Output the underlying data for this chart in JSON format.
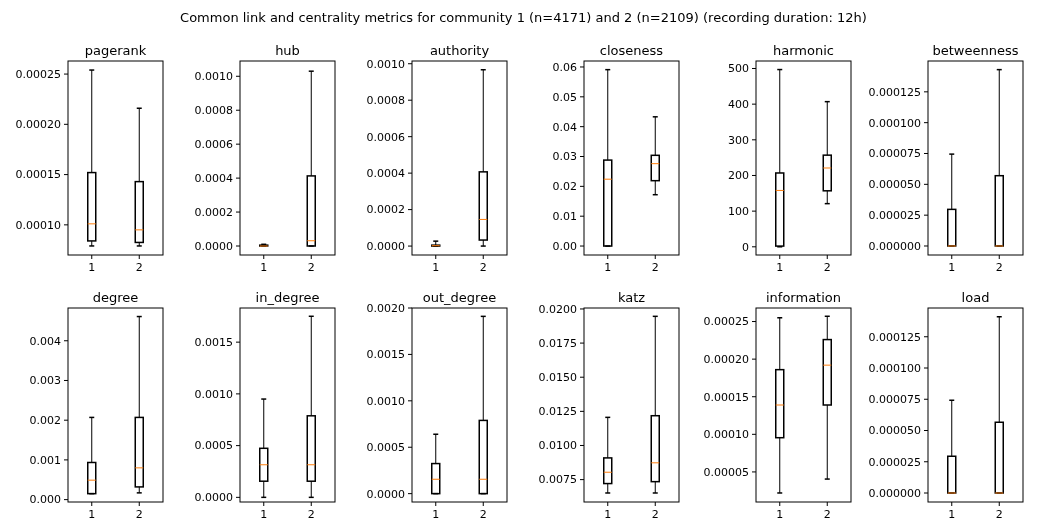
{
  "chart_data": [
    {
      "type": "box",
      "title": "pagerank",
      "annotations": [
        "Common link and centrality metrics for community 1 (n=4171) and 2 (n=2109) (recording duration: 12h)"
      ],
      "categories": [
        "1",
        "2"
      ],
      "ylim": [
        7e-05,
        0.000263
      ],
      "yticks": [
        {
          "value": 0.0001,
          "label": "0.00010"
        },
        {
          "value": 0.00015,
          "label": "0.00015"
        },
        {
          "value": 0.0002,
          "label": "0.00020"
        },
        {
          "value": 0.00025,
          "label": "0.00025"
        }
      ],
      "boxes": [
        {
          "low": 7.9e-05,
          "q1": 8.4e-05,
          "median": 0.000101,
          "q3": 0.000152,
          "high": 0.000254
        },
        {
          "low": 7.9e-05,
          "q1": 8.25e-05,
          "median": 9.5e-05,
          "q3": 0.000143,
          "high": 0.000216
        }
      ]
    },
    {
      "type": "box",
      "title": "hub",
      "categories": [
        "1",
        "2"
      ],
      "ylim": [
        -5.3e-05,
        0.00109
      ],
      "yticks": [
        {
          "value": 0,
          "label": "0.0000"
        },
        {
          "value": 0.0002,
          "label": "0.0002"
        },
        {
          "value": 0.0004,
          "label": "0.0004"
        },
        {
          "value": 0.0006,
          "label": "0.0006"
        },
        {
          "value": 0.0008,
          "label": "0.0008"
        },
        {
          "value": 0.001,
          "label": "0.0010"
        }
      ],
      "boxes": [
        {
          "low": 0,
          "q1": 0,
          "median": 0,
          "q3": 5e-06,
          "high": 1e-05
        },
        {
          "low": 0,
          "q1": 0,
          "median": 3.1e-05,
          "q3": 0.000413,
          "high": 0.00103
        }
      ]
    },
    {
      "type": "box",
      "title": "authority",
      "categories": [
        "1",
        "2"
      ],
      "ylim": [
        -4.9e-05,
        0.001015
      ],
      "yticks": [
        {
          "value": 0,
          "label": "0.0000"
        },
        {
          "value": 0.0002,
          "label": "0.0002"
        },
        {
          "value": 0.0004,
          "label": "0.0004"
        },
        {
          "value": 0.0006,
          "label": "0.0006"
        },
        {
          "value": 0.0008,
          "label": "0.0008"
        },
        {
          "value": 0.001,
          "label": "0.0010"
        }
      ],
      "boxes": [
        {
          "low": 0,
          "q1": 0,
          "median": 2e-06,
          "q3": 5e-06,
          "high": 2.7e-05
        },
        {
          "low": 0,
          "q1": 3.3e-05,
          "median": 0.000146,
          "q3": 0.000407,
          "high": 0.000967
        }
      ]
    },
    {
      "type": "box",
      "title": "closeness",
      "categories": [
        "1",
        "2"
      ],
      "ylim": [
        -0.003,
        0.062
      ],
      "yticks": [
        {
          "value": 0,
          "label": "0.00"
        },
        0.01,
        0.02,
        0.03,
        0.04,
        0.05,
        0.06
      ],
      "boxes": [
        {
          "low": 0,
          "q1": 0,
          "median": 0.0224,
          "q3": 0.0288,
          "high": 0.0591
        },
        {
          "low": 0.0172,
          "q1": 0.0219,
          "median": 0.0276,
          "q3": 0.0304,
          "high": 0.0433
        }
      ]
    },
    {
      "type": "box",
      "title": "harmonic",
      "categories": [
        "1",
        "2"
      ],
      "ylim": [
        -23,
        521
      ],
      "yticks": [
        0,
        100,
        200,
        300,
        400,
        500
      ],
      "boxes": [
        {
          "low": 0,
          "q1": 2,
          "median": 158,
          "q3": 207,
          "high": 497
        },
        {
          "low": 121,
          "q1": 157,
          "median": 221,
          "q3": 257,
          "high": 407
        }
      ]
    },
    {
      "type": "box",
      "title": "betweenness",
      "categories": [
        "1",
        "2"
      ],
      "ylim": [
        -7.3e-06,
        0.00015
      ],
      "yticks": [
        {
          "value": 0,
          "label": "0.000000"
        },
        {
          "value": 2.5e-05,
          "label": "0.000025"
        },
        {
          "value": 5e-05,
          "label": "0.000050"
        },
        {
          "value": 7.5e-05,
          "label": "0.000075"
        },
        {
          "value": 0.0001,
          "label": "0.000100"
        },
        {
          "value": 0.000125,
          "label": "0.000125"
        }
      ],
      "boxes": [
        {
          "low": 0,
          "q1": 0,
          "median": 0,
          "q3": 2.97e-05,
          "high": 7.45e-05
        },
        {
          "low": 0,
          "q1": 0,
          "median": 0,
          "q3": 5.7e-05,
          "high": 0.000143
        }
      ]
    },
    {
      "type": "box",
      "title": "degree",
      "categories": [
        "1",
        "2"
      ],
      "ylim": [
        -6e-05,
        0.004825
      ],
      "yticks": [
        {
          "value": 0,
          "label": "0.000"
        },
        0.001,
        0.002,
        0.003,
        0.004
      ],
      "boxes": [
        {
          "low": 0.00015,
          "q1": 0.00015,
          "median": 0.00049,
          "q3": 0.000935,
          "high": 0.00207
        },
        {
          "low": 0.00017,
          "q1": 0.00032,
          "median": 0.0008,
          "q3": 0.00207,
          "high": 0.00461
        }
      ]
    },
    {
      "type": "box",
      "title": "in_degree",
      "categories": [
        "1",
        "2"
      ],
      "ylim": [
        -4.5e-05,
        0.00183
      ],
      "yticks": [
        {
          "value": 0,
          "label": "0.0000"
        },
        0.0005,
        {
          "value": 0.001,
          "label": "0.0010"
        },
        0.0015
      ],
      "boxes": [
        {
          "low": 0,
          "q1": 0.000156,
          "median": 0.000315,
          "q3": 0.000474,
          "high": 0.00095
        },
        {
          "low": 0,
          "q1": 0.000156,
          "median": 0.000315,
          "q3": 0.000788,
          "high": 0.00175
        }
      ]
    },
    {
      "type": "box",
      "title": "out_degree",
      "categories": [
        "1",
        "2"
      ],
      "ylim": [
        -9e-05,
        0.002
      ],
      "yticks": [
        {
          "value": 0,
          "label": "0.0000"
        },
        0.0005,
        {
          "value": 0.001,
          "label": "0.0010"
        },
        0.0015,
        {
          "value": 0.002,
          "label": "0.0020"
        }
      ],
      "boxes": [
        {
          "low": 0,
          "q1": 0,
          "median": 0.000155,
          "q3": 0.000324,
          "high": 0.00064
        },
        {
          "low": 0,
          "q1": 0,
          "median": 0.000155,
          "q3": 0.000789,
          "high": 0.00191
        }
      ]
    },
    {
      "type": "box",
      "title": "katz",
      "categories": [
        "1",
        "2"
      ],
      "ylim": [
        0.00586,
        0.02007
      ],
      "yticks": [
        0.0075,
        {
          "value": 0.01,
          "label": "0.0100"
        },
        0.0125,
        {
          "value": 0.015,
          "label": "0.0150"
        },
        0.0175,
        {
          "value": 0.02,
          "label": "0.0200"
        }
      ],
      "boxes": [
        {
          "low": 0.00652,
          "q1": 0.00721,
          "median": 0.00804,
          "q3": 0.00909,
          "high": 0.01206
        },
        {
          "low": 0.00652,
          "q1": 0.00735,
          "median": 0.00873,
          "q3": 0.01218,
          "high": 0.01946
        }
      ]
    },
    {
      "type": "box",
      "title": "information",
      "categories": [
        "1",
        "2"
      ],
      "ylim": [
        1e-05,
        0.000268
      ],
      "yticks": [
        {
          "value": 5e-05,
          "label": "0.00005"
        },
        {
          "value": 0.0001,
          "label": "0.00010"
        },
        0.00015,
        {
          "value": 0.0002,
          "label": "0.00020"
        },
        0.00025
      ],
      "boxes": [
        {
          "low": 2.2e-05,
          "q1": 9.55e-05,
          "median": 0.000139,
          "q3": 0.000186,
          "high": 0.000255
        },
        {
          "low": 4.05e-05,
          "q1": 0.000139,
          "median": 0.000192,
          "q3": 0.000226,
          "high": 0.000257
        }
      ]
    },
    {
      "type": "box",
      "title": "load",
      "categories": [
        "1",
        "2"
      ],
      "ylim": [
        -7.2e-06,
        0.000148
      ],
      "yticks": [
        {
          "value": 0,
          "label": "0.000000"
        },
        {
          "value": 2.5e-05,
          "label": "0.000025"
        },
        {
          "value": 5e-05,
          "label": "0.000050"
        },
        {
          "value": 7.5e-05,
          "label": "0.000075"
        },
        {
          "value": 0.0001,
          "label": "0.000100"
        },
        {
          "value": 0.000125,
          "label": "0.000125"
        }
      ],
      "boxes": [
        {
          "low": 0,
          "q1": 0,
          "median": 0,
          "q3": 2.94e-05,
          "high": 7.42e-05
        },
        {
          "low": 0,
          "q1": 0,
          "median": 0,
          "q3": 5.66e-05,
          "high": 0.000141
        }
      ]
    }
  ]
}
